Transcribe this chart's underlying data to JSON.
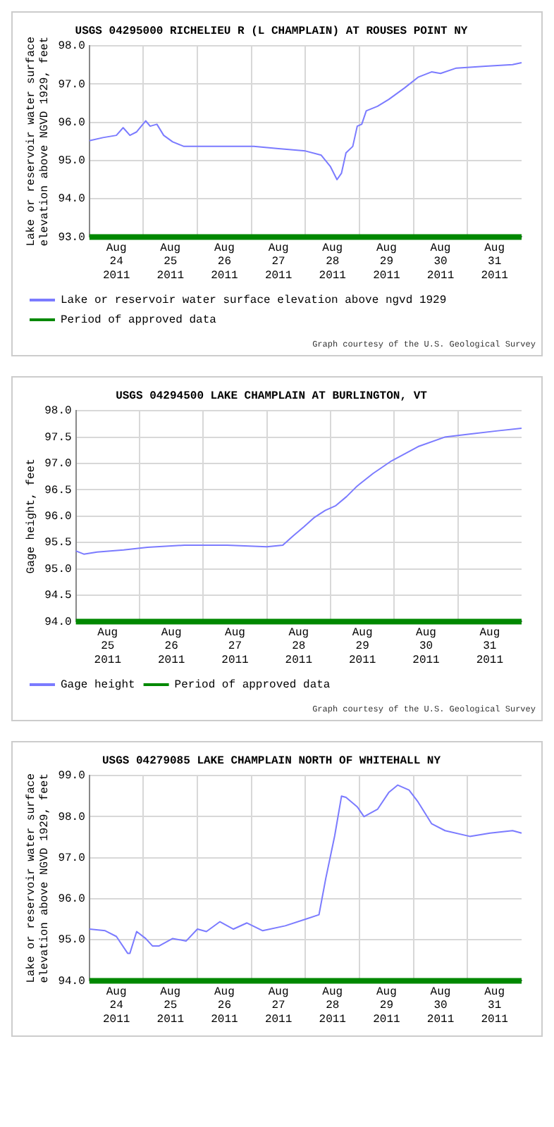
{
  "chart_data": [
    {
      "type": "line",
      "title": "USGS 04295000 RICHELIEU R (L CHAMPLAIN) AT ROUSES POINT NY",
      "ylabel": "Lake or reservoir water surface\nelevation above NGVD 1929, feet",
      "xlim": [
        "2011-08-24T00:00",
        "2011-09-01T00:00"
      ],
      "ylim": [
        93,
        98
      ],
      "yticks": [
        {
          "value": 93,
          "label": "93.0"
        },
        {
          "value": 94,
          "label": "94.0"
        },
        {
          "value": 95,
          "label": "95.0"
        },
        {
          "value": 96,
          "label": "96.0"
        },
        {
          "value": 97,
          "label": "97.0"
        },
        {
          "value": 98,
          "label": "98.0"
        }
      ],
      "xticks": [
        {
          "value": "2011-08-24T12:00",
          "label": "Aug\n24\n2011"
        },
        {
          "value": "2011-08-25T00:00",
          "label": null
        },
        {
          "value": "2011-08-25T12:00",
          "label": "Aug\n25\n2011"
        },
        {
          "value": "2011-08-26T00:00",
          "label": null
        },
        {
          "value": "2011-08-26T12:00",
          "label": "Aug\n26\n2011"
        },
        {
          "value": "2011-08-27T00:00",
          "label": null
        },
        {
          "value": "2011-08-27T12:00",
          "label": "Aug\n27\n2011"
        },
        {
          "value": "2011-08-28T00:00",
          "label": null
        },
        {
          "value": "2011-08-28T12:00",
          "label": "Aug\n28\n2011"
        },
        {
          "value": "2011-08-29T00:00",
          "label": null
        },
        {
          "value": "2011-08-29T12:00",
          "label": "Aug\n29\n2011"
        },
        {
          "value": "2011-08-30T00:00",
          "label": null
        },
        {
          "value": "2011-08-30T12:00",
          "label": "Aug\n30\n2011"
        },
        {
          "value": "2011-08-31T00:00",
          "label": null
        },
        {
          "value": "2011-08-31T12:00",
          "label": "Aug\n31\n2011"
        }
      ],
      "grid": true,
      "legend": "bottom",
      "marker": "none",
      "annotations": [
        "Graph courtesy of the U.S. Geological Survey"
      ],
      "series": [
        {
          "name": "Lake or reservoir water surface elevation above ngvd 1929",
          "color": "#7b7bff",
          "x": [
            "2011-08-24T00:00",
            "2011-08-24T06:00",
            "2011-08-24T12:00",
            "2011-08-24T15:00",
            "2011-08-24T18:00",
            "2011-08-24T21:00",
            "2011-08-25T01:00",
            "2011-08-25T03:00",
            "2011-08-25T06:00",
            "2011-08-25T09:00",
            "2011-08-25T13:00",
            "2011-08-25T18:00",
            "2011-08-26T02:00",
            "2011-08-26T13:00",
            "2011-08-27T01:00",
            "2011-08-27T12:00",
            "2011-08-28T00:00",
            "2011-08-28T07:00",
            "2011-08-28T11:00",
            "2011-08-28T14:00",
            "2011-08-28T16:00",
            "2011-08-28T18:00",
            "2011-08-28T21:00",
            "2011-08-28T23:00",
            "2011-08-29T01:00",
            "2011-08-29T03:00",
            "2011-08-29T08:00",
            "2011-08-29T13:00",
            "2011-08-29T20:00",
            "2011-08-30T02:00",
            "2011-08-30T08:00",
            "2011-08-30T12:00",
            "2011-08-30T19:00",
            "2011-08-31T01:00",
            "2011-08-31T08:00",
            "2011-08-31T20:00",
            "2011-09-01T00:00"
          ],
          "values": [
            95.52,
            95.6,
            95.66,
            95.86,
            95.66,
            95.75,
            96.04,
            95.9,
            95.95,
            95.66,
            95.49,
            95.37,
            95.37,
            95.37,
            95.37,
            95.31,
            95.25,
            95.14,
            94.85,
            94.5,
            94.67,
            95.2,
            95.37,
            95.9,
            95.95,
            96.3,
            96.42,
            96.6,
            96.9,
            97.18,
            97.32,
            97.28,
            97.42,
            97.44,
            97.47,
            97.51,
            97.56
          ]
        },
        {
          "name": "Period of approved data",
          "color": "#008800",
          "x": [
            "2011-08-24T00:00",
            "2011-09-01T00:00"
          ],
          "values": [
            93,
            93
          ]
        }
      ]
    },
    {
      "type": "line",
      "title": "USGS 04294500 LAKE CHAMPLAIN AT BURLINGTON, VT",
      "ylabel": "Gage height, feet",
      "xlim": [
        "2011-08-25T00:00",
        "2011-09-01T00:00"
      ],
      "ylim": [
        94,
        98
      ],
      "yticks": [
        {
          "value": 94,
          "label": "94.0"
        },
        {
          "value": 94.5,
          "label": "94.5"
        },
        {
          "value": 95,
          "label": "95.0"
        },
        {
          "value": 95.5,
          "label": "95.5"
        },
        {
          "value": 96,
          "label": "96.0"
        },
        {
          "value": 96.5,
          "label": "96.5"
        },
        {
          "value": 97,
          "label": "97.0"
        },
        {
          "value": 97.5,
          "label": "97.5"
        },
        {
          "value": 98,
          "label": "98.0"
        }
      ],
      "xticks": [
        {
          "value": "2011-08-25T12:00",
          "label": "Aug\n25\n2011"
        },
        {
          "value": "2011-08-26T00:00",
          "label": null
        },
        {
          "value": "2011-08-26T12:00",
          "label": "Aug\n26\n2011"
        },
        {
          "value": "2011-08-27T00:00",
          "label": null
        },
        {
          "value": "2011-08-27T12:00",
          "label": "Aug\n27\n2011"
        },
        {
          "value": "2011-08-28T00:00",
          "label": null
        },
        {
          "value": "2011-08-28T12:00",
          "label": "Aug\n28\n2011"
        },
        {
          "value": "2011-08-29T00:00",
          "label": null
        },
        {
          "value": "2011-08-29T12:00",
          "label": "Aug\n29\n2011"
        },
        {
          "value": "2011-08-30T00:00",
          "label": null
        },
        {
          "value": "2011-08-30T12:00",
          "label": "Aug\n30\n2011"
        },
        {
          "value": "2011-08-31T00:00",
          "label": null
        },
        {
          "value": "2011-08-31T12:00",
          "label": "Aug\n31\n2011"
        }
      ],
      "grid": true,
      "legend": "bottom",
      "marker": "none",
      "annotations": [
        "Graph courtesy of the U.S. Geological Survey"
      ],
      "series": [
        {
          "name": "Gage height",
          "color": "#7b7bff",
          "x": [
            "2011-08-25T00:00",
            "2011-08-25T03:00",
            "2011-08-25T08:00",
            "2011-08-25T18:00",
            "2011-08-26T03:00",
            "2011-08-26T17:00",
            "2011-08-27T09:00",
            "2011-08-28T00:00",
            "2011-08-28T06:00",
            "2011-08-28T10:00",
            "2011-08-28T14:00",
            "2011-08-28T18:00",
            "2011-08-28T22:00",
            "2011-08-29T02:00",
            "2011-08-29T06:00",
            "2011-08-29T10:00",
            "2011-08-29T16:00",
            "2011-08-29T23:00",
            "2011-08-30T09:00",
            "2011-08-30T19:00",
            "2011-08-31T05:00",
            "2011-08-31T15:00",
            "2011-09-01T00:00"
          ],
          "values": [
            95.34,
            95.28,
            95.32,
            95.36,
            95.41,
            95.45,
            95.45,
            95.42,
            95.45,
            95.63,
            95.8,
            95.98,
            96.11,
            96.2,
            96.37,
            96.57,
            96.81,
            97.05,
            97.32,
            97.5,
            97.56,
            97.62,
            97.67
          ]
        },
        {
          "name": "Period of approved data",
          "color": "#008800",
          "x": [
            "2011-08-25T00:00",
            "2011-09-01T00:00"
          ],
          "values": [
            94,
            94
          ]
        }
      ]
    },
    {
      "type": "line",
      "title": "USGS 04279085 LAKE CHAMPLAIN NORTH OF WHITEHALL NY",
      "ylabel": "Lake or reservoir water surface\nelevation above NGVD 1929, feet",
      "xlim": [
        "2011-08-24T00:00",
        "2011-09-01T00:00"
      ],
      "ylim": [
        94,
        99
      ],
      "yticks": [
        {
          "value": 94,
          "label": "94.0"
        },
        {
          "value": 95,
          "label": "95.0"
        },
        {
          "value": 96,
          "label": "96.0"
        },
        {
          "value": 97,
          "label": "97.0"
        },
        {
          "value": 98,
          "label": "98.0"
        },
        {
          "value": 99,
          "label": "99.0"
        }
      ],
      "xticks": [
        {
          "value": "2011-08-24T12:00",
          "label": "Aug\n24\n2011"
        },
        {
          "value": "2011-08-25T00:00",
          "label": null
        },
        {
          "value": "2011-08-25T12:00",
          "label": "Aug\n25\n2011"
        },
        {
          "value": "2011-08-26T00:00",
          "label": null
        },
        {
          "value": "2011-08-26T12:00",
          "label": "Aug\n26\n2011"
        },
        {
          "value": "2011-08-27T00:00",
          "label": null
        },
        {
          "value": "2011-08-27T12:00",
          "label": "Aug\n27\n2011"
        },
        {
          "value": "2011-08-28T00:00",
          "label": null
        },
        {
          "value": "2011-08-28T12:00",
          "label": "Aug\n28\n2011"
        },
        {
          "value": "2011-08-29T00:00",
          "label": null
        },
        {
          "value": "2011-08-29T12:00",
          "label": "Aug\n29\n2011"
        },
        {
          "value": "2011-08-30T00:00",
          "label": null
        },
        {
          "value": "2011-08-30T12:00",
          "label": "Aug\n30\n2011"
        },
        {
          "value": "2011-08-31T00:00",
          "label": null
        },
        {
          "value": "2011-08-31T12:00",
          "label": "Aug\n31\n2011"
        }
      ],
      "grid": true,
      "marker": "none",
      "series": [
        {
          "color": "#7b7bff",
          "x": [
            "2011-08-24T00:00",
            "2011-08-24T07:00",
            "2011-08-24T12:00",
            "2011-08-24T17:00",
            "2011-08-24T18:00",
            "2011-08-24T21:00",
            "2011-08-25T01:00",
            "2011-08-25T04:00",
            "2011-08-25T07:00",
            "2011-08-25T13:00",
            "2011-08-25T19:00",
            "2011-08-26T00:00",
            "2011-08-26T04:00",
            "2011-08-26T10:00",
            "2011-08-26T16:00",
            "2011-08-26T22:00",
            "2011-08-27T05:00",
            "2011-08-27T15:00",
            "2011-08-28T00:00",
            "2011-08-28T06:00",
            "2011-08-28T09:00",
            "2011-08-28T13:00",
            "2011-08-28T16:00",
            "2011-08-28T18:00",
            "2011-08-28T23:00",
            "2011-08-29T02:00",
            "2011-08-29T08:00",
            "2011-08-29T13:00",
            "2011-08-29T17:00",
            "2011-08-29T22:00",
            "2011-08-30T02:00",
            "2011-08-30T08:00",
            "2011-08-30T14:00",
            "2011-08-31T01:00",
            "2011-08-31T10:00",
            "2011-08-31T20:00",
            "2011-09-01T00:00"
          ],
          "values": [
            95.26,
            95.22,
            95.08,
            94.67,
            94.67,
            95.2,
            95.03,
            94.85,
            94.85,
            95.03,
            94.97,
            95.26,
            95.2,
            95.44,
            95.26,
            95.41,
            95.22,
            95.34,
            95.5,
            95.61,
            96.49,
            97.54,
            98.5,
            98.47,
            98.24,
            98.0,
            98.18,
            98.59,
            98.77,
            98.65,
            98.36,
            97.83,
            97.66,
            97.52,
            97.6,
            97.66,
            97.6
          ]
        },
        {
          "color": "#008800",
          "x": [
            "2011-08-24T00:00",
            "2011-09-01T00:00"
          ],
          "values": [
            94,
            94
          ]
        }
      ]
    }
  ]
}
